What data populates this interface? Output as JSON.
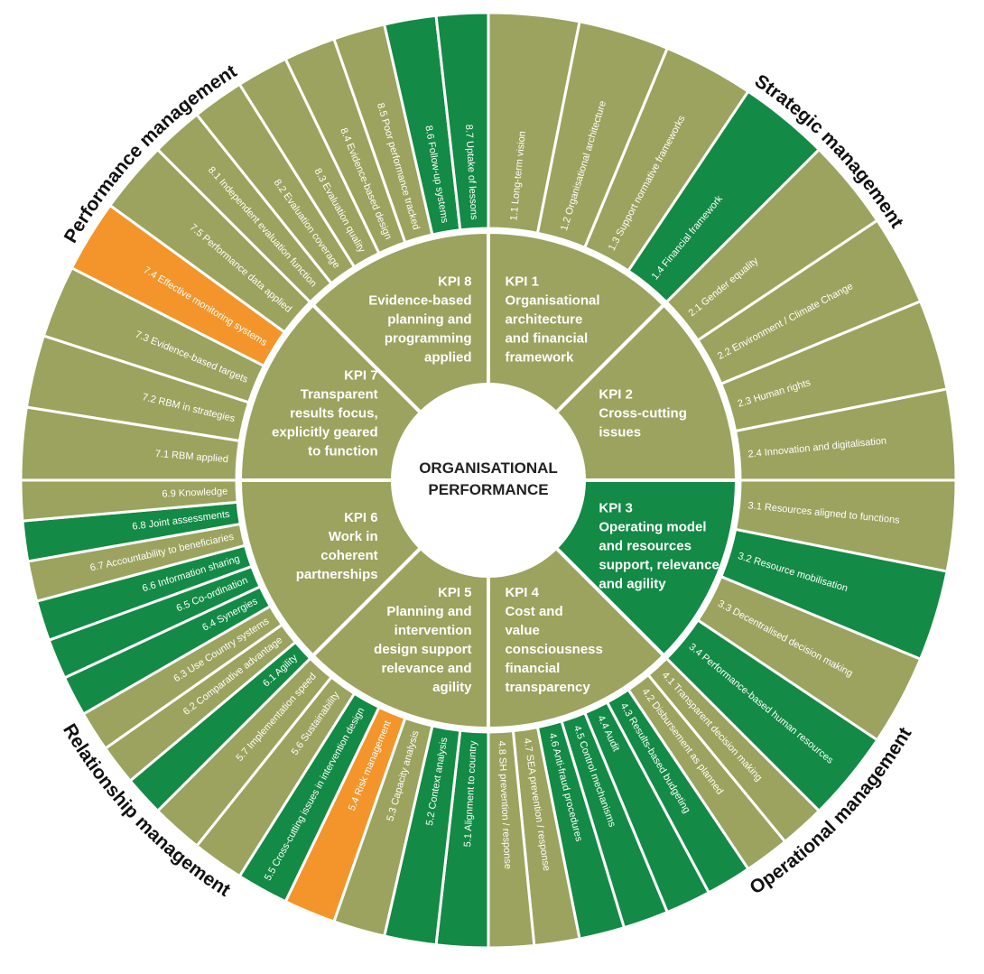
{
  "center": {
    "lines": [
      "ORGANISATIONAL",
      "PERFORMANCE"
    ]
  },
  "colors": {
    "olive": "#9ba35f",
    "green": "#138a45",
    "orange": "#f3952a",
    "divider": "#ffffff"
  },
  "areas": [
    {
      "id": "strategic",
      "label": "Strategic management"
    },
    {
      "id": "operational",
      "label": "Operational management"
    },
    {
      "id": "relationship",
      "label": "Relationship management"
    },
    {
      "id": "performance",
      "label": "Performance management"
    }
  ],
  "kpis": [
    {
      "id": "kpi1",
      "lines": [
        "KPI 1",
        "Organisational",
        "architecture",
        "and financial",
        "framework"
      ],
      "color": "olive",
      "items": [
        {
          "label": "1.1 Long-term vision",
          "color": "olive"
        },
        {
          "label": "1.2 Organisational architecture",
          "color": "olive"
        },
        {
          "label": "1.3 Support normative frameworks",
          "color": "olive"
        },
        {
          "label": "1.4 Financial framework",
          "color": "green"
        }
      ]
    },
    {
      "id": "kpi2",
      "lines": [
        "KPI 2",
        "Cross-cutting",
        "issues"
      ],
      "color": "olive",
      "items": [
        {
          "label": "2.1 Gender equality",
          "color": "olive"
        },
        {
          "label": "2.2 Environment / Climate Change",
          "color": "olive"
        },
        {
          "label": "2.3 Human rights",
          "color": "olive"
        },
        {
          "label": "2.4 Innovation and digitalisation",
          "color": "olive"
        }
      ]
    },
    {
      "id": "kpi3",
      "lines": [
        "KPI 3",
        "Operating model",
        "and resources",
        "support, relevance",
        "and agility"
      ],
      "color": "green",
      "items": [
        {
          "label": "3.1 Resources aligned to functions",
          "color": "olive"
        },
        {
          "label": "3.2 Resource mobilisation",
          "color": "green"
        },
        {
          "label": "3.3 Decentralised decision making",
          "color": "olive"
        },
        {
          "label": "3.4 Performance-based human resources",
          "color": "green"
        }
      ]
    },
    {
      "id": "kpi4",
      "lines": [
        "KPI 4",
        "Cost and",
        "value",
        "consciousness",
        "financial",
        "transparency"
      ],
      "color": "olive",
      "items": [
        {
          "label": "4.1 Transparent decision making",
          "color": "olive"
        },
        {
          "label": "4.2 Disbursement as planned",
          "color": "olive"
        },
        {
          "label": "4.3 Results-based budgeting",
          "color": "green"
        },
        {
          "label": "4.4 Audit",
          "color": "green"
        },
        {
          "label": "4.5 Control mechanisms",
          "color": "green"
        },
        {
          "label": "4.6 Anti-fraud procedures",
          "color": "green"
        },
        {
          "label": "4.7 SEA prevention / response",
          "color": "olive"
        },
        {
          "label": "4.8 SH prevention / response",
          "color": "olive"
        }
      ]
    },
    {
      "id": "kpi5",
      "lines": [
        "KPI 5",
        "Planning and",
        "intervention",
        "design support",
        "relevance and",
        "agility"
      ],
      "color": "olive",
      "items": [
        {
          "label": "5.1 Alignment to country",
          "color": "green"
        },
        {
          "label": "5.2 Context analysis",
          "color": "green"
        },
        {
          "label": "5.3 Capacity analysis",
          "color": "olive"
        },
        {
          "label": "5.4 Risk management",
          "color": "orange"
        },
        {
          "label": "5.5 Cross-cutting issues in intervention design",
          "color": "green"
        },
        {
          "label": "5.6 Sustainability",
          "color": "olive"
        },
        {
          "label": "5.7 Implementation speed",
          "color": "olive"
        }
      ]
    },
    {
      "id": "kpi6",
      "lines": [
        "KPI 6",
        "Work in",
        "coherent",
        "partnerships"
      ],
      "color": "olive",
      "items": [
        {
          "label": "6.1 Agility",
          "color": "green"
        },
        {
          "label": "6.2 Comparative advantage",
          "color": "olive"
        },
        {
          "label": "6.3 Use Country systems",
          "color": "olive"
        },
        {
          "label": "6.4 Synergies",
          "color": "green"
        },
        {
          "label": "6.5 Co-ordination",
          "color": "green"
        },
        {
          "label": "6.6 Information sharing",
          "color": "green"
        },
        {
          "label": "6.7 Accountability to beneficiaries",
          "color": "olive"
        },
        {
          "label": "6.8 Joint assessments",
          "color": "green"
        },
        {
          "label": "6.9 Knowledge",
          "color": "olive"
        }
      ]
    },
    {
      "id": "kpi7",
      "lines": [
        "KPI 7",
        "Transparent",
        "results focus,",
        "explicitly geared",
        "to function"
      ],
      "color": "olive",
      "items": [
        {
          "label": "7.1 RBM applied",
          "color": "olive"
        },
        {
          "label": "7.2 RBM in strategies",
          "color": "olive"
        },
        {
          "label": "7.3 Evidence-based targets",
          "color": "olive"
        },
        {
          "label": "7.4 Effective monitoring systems",
          "color": "orange"
        },
        {
          "label": "7.5 Performance data applied",
          "color": "olive"
        }
      ]
    },
    {
      "id": "kpi8",
      "lines": [
        "KPI 8",
        "Evidence-based",
        "planning and",
        "programming",
        "applied"
      ],
      "color": "olive",
      "items": [
        {
          "label": "8.1 Independent evaluation function",
          "color": "olive"
        },
        {
          "label": "8.2 Evaluation coverage",
          "color": "olive"
        },
        {
          "label": "8.3 Evaluation quality",
          "color": "olive"
        },
        {
          "label": "8.4 Evidence-based design",
          "color": "olive"
        },
        {
          "label": "8.5 Poor performance tracked",
          "color": "olive"
        },
        {
          "label": "8.6 Follow-up systems",
          "color": "green"
        },
        {
          "label": "8.7 Uptake of lessons",
          "color": "green"
        }
      ]
    }
  ]
}
